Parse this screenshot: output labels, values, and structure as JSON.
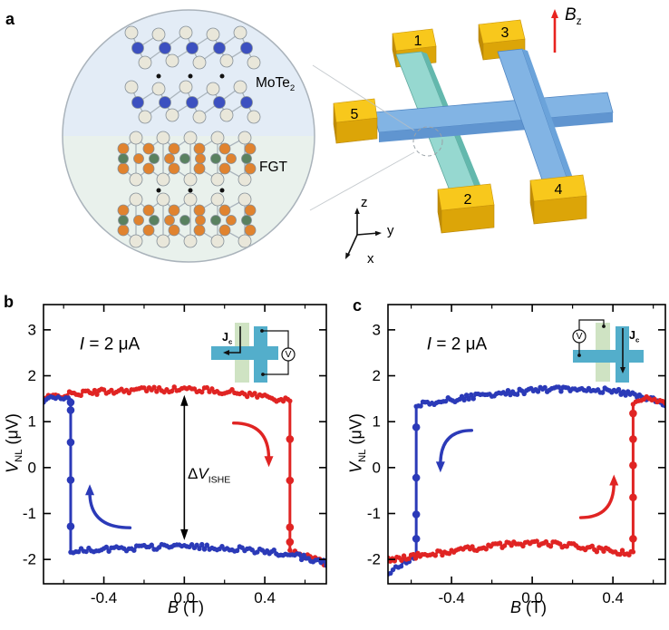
{
  "figure": {
    "panel_labels": {
      "a": "a",
      "b": "b",
      "c": "c"
    },
    "colors": {
      "red": "#e02423",
      "blue": "#2b3ab8",
      "device_blue_top": "#82b4e4",
      "device_blue_front": "#6095d0",
      "device_blue_side": "#6ba3da",
      "device_blue_outline": "#4f85c2",
      "device_teal_top": "#96d8d0",
      "device_teal_side": "#63b8ad",
      "pad_top": "#f8c81c",
      "pad_front": "#dca508",
      "pad_side": "#c08c06",
      "inset_green": "#cfe3c3",
      "inset_blue": "#53aecb",
      "field_arrow": "#e8231f"
    }
  },
  "panel_a": {
    "label": "a",
    "zoom_inset": {
      "top_material": {
        "base": "MoTe",
        "sub": "2"
      },
      "bottom_material": "FGT",
      "bg_top": "#e3ecf6",
      "bg_bottom": "#e9f1ec",
      "atom_colors": {
        "te": "#e9e7da",
        "mo": "#3c50c0",
        "fe": "#e0832f",
        "ge": "#59815f"
      }
    },
    "device": {
      "contacts": [
        "1",
        "2",
        "3",
        "4",
        "5"
      ],
      "field_label": {
        "base": "B",
        "sub": "z"
      },
      "axis_labels": {
        "z": "z",
        "y": "y",
        "x": "x"
      }
    }
  },
  "chart_data": [
    {
      "id": "b",
      "type": "line",
      "xlabel": {
        "base": "B",
        "unit": " (T)"
      },
      "ylabel": {
        "base": "V",
        "sub": "NL",
        "unit": " (μV)"
      },
      "xlim": [
        -0.7,
        0.706
      ],
      "ylim": [
        -2.53,
        3.55
      ],
      "xticks": [
        {
          "v": -0.4,
          "t": "-0.4"
        },
        {
          "v": 0.0,
          "t": "0.0"
        },
        {
          "v": 0.4,
          "t": "0.4"
        }
      ],
      "xminor": [
        -0.6,
        -0.2,
        0.2,
        0.6
      ],
      "yticks": [
        {
          "v": -2,
          "t": "-2"
        },
        {
          "v": -1,
          "t": "-1"
        },
        {
          "v": 0,
          "t": "0"
        },
        {
          "v": 1,
          "t": "1"
        },
        {
          "v": 2,
          "t": "2"
        },
        {
          "v": 3,
          "t": "3"
        }
      ],
      "annotations": {
        "current": {
          "base": "I",
          "rest": " = 2 μA",
          "x": -0.37,
          "y": 2.68
        },
        "delta": {
          "sym": "Δ",
          "var": "V",
          "sub": "ISHE",
          "x": 0.0,
          "y1": 1.58,
          "y2": -1.58
        },
        "arrows": [
          {
            "color": "red",
            "from": [
              0.245,
              0.97
            ],
            "ctrl": [
              0.42,
              0.97
            ],
            "to": [
              0.42,
              0.19
            ]
          },
          {
            "color": "blue",
            "from": [
              -0.27,
              -1.31
            ],
            "ctrl": [
              -0.47,
              -1.31
            ],
            "to": [
              -0.47,
              -0.54
            ]
          }
        ]
      },
      "series": [
        {
          "name": "sweep-up",
          "color": "red",
          "points": [
            [
              -0.7,
              1.5
            ],
            [
              -0.64,
              1.56
            ],
            [
              -0.56,
              1.6
            ],
            [
              -0.48,
              1.63
            ],
            [
              -0.4,
              1.66
            ],
            [
              -0.3,
              1.68
            ],
            [
              -0.2,
              1.7
            ],
            [
              -0.1,
              1.7
            ],
            [
              0.0,
              1.71
            ],
            [
              0.1,
              1.69
            ],
            [
              0.2,
              1.66
            ],
            [
              0.3,
              1.61
            ],
            [
              0.4,
              1.55
            ],
            [
              0.47,
              1.49
            ],
            [
              0.525,
              1.44
            ],
            [
              0.525,
              -1.8
            ],
            [
              0.55,
              -1.87
            ],
            [
              0.6,
              -1.92
            ],
            [
              0.65,
              -1.99
            ],
            [
              0.706,
              -2.1
            ]
          ],
          "jump_dots": [
            [
              0.525,
              0.62
            ],
            [
              0.525,
              -0.28
            ],
            [
              0.525,
              -1.3
            ],
            [
              0.525,
              -1.62
            ]
          ]
        },
        {
          "name": "sweep-down",
          "color": "blue",
          "points": [
            [
              0.706,
              -2.08
            ],
            [
              0.64,
              -2.0
            ],
            [
              0.56,
              -1.93
            ],
            [
              0.48,
              -1.87
            ],
            [
              0.4,
              -1.83
            ],
            [
              0.3,
              -1.78
            ],
            [
              0.2,
              -1.75
            ],
            [
              0.1,
              -1.72
            ],
            [
              0.0,
              -1.7
            ],
            [
              -0.1,
              -1.72
            ],
            [
              -0.2,
              -1.74
            ],
            [
              -0.3,
              -1.76
            ],
            [
              -0.4,
              -1.77
            ],
            [
              -0.5,
              -1.78
            ],
            [
              -0.565,
              -1.8
            ],
            [
              -0.565,
              1.46
            ],
            [
              -0.6,
              1.51
            ],
            [
              -0.64,
              1.52
            ],
            [
              -0.7,
              1.48
            ]
          ],
          "jump_dots": [
            [
              -0.565,
              1.42
            ],
            [
              -0.565,
              1.25
            ],
            [
              -0.565,
              0.55
            ],
            [
              -0.565,
              -0.27
            ],
            [
              -0.565,
              -1.28
            ]
          ]
        }
      ],
      "inset": {
        "variant": "b",
        "jc": {
          "base": "J",
          "sub": "c"
        },
        "meter": "V"
      }
    },
    {
      "id": "c",
      "type": "line",
      "xlabel": {
        "base": "B",
        "unit": " (T)"
      },
      "ylabel": {
        "base": "V",
        "sub": "NL",
        "unit": " (μV)"
      },
      "xlim": [
        -0.715,
        0.66
      ],
      "ylim": [
        -2.53,
        3.55
      ],
      "xticks": [
        {
          "v": -0.4,
          "t": "-0.4"
        },
        {
          "v": 0.0,
          "t": "0.0"
        },
        {
          "v": 0.4,
          "t": "0.4"
        }
      ],
      "xminor": [
        -0.6,
        -0.2,
        0.2,
        0.6
      ],
      "yticks": [
        {
          "v": -2,
          "t": "-2"
        },
        {
          "v": -1,
          "t": "-1"
        },
        {
          "v": 0,
          "t": "0"
        },
        {
          "v": 1,
          "t": "1"
        },
        {
          "v": 2,
          "t": "2"
        },
        {
          "v": 3,
          "t": "3"
        }
      ],
      "annotations": {
        "current": {
          "base": "I",
          "rest": " = 2 μA",
          "x": -0.37,
          "y": 2.68
        },
        "arrows": [
          {
            "color": "blue",
            "from": [
              -0.3,
              0.81
            ],
            "ctrl": [
              -0.455,
              0.81
            ],
            "to": [
              -0.455,
              0.07
            ]
          },
          {
            "color": "red",
            "from": [
              0.24,
              -1.09
            ],
            "ctrl": [
              0.405,
              -1.09
            ],
            "to": [
              0.405,
              -0.33
            ]
          }
        ]
      },
      "series": [
        {
          "name": "sweep-down",
          "color": "blue",
          "points": [
            [
              0.66,
              1.4
            ],
            [
              0.6,
              1.49
            ],
            [
              0.52,
              1.57
            ],
            [
              0.44,
              1.64
            ],
            [
              0.36,
              1.68
            ],
            [
              0.28,
              1.71
            ],
            [
              0.2,
              1.72
            ],
            [
              0.12,
              1.71
            ],
            [
              0.04,
              1.69
            ],
            [
              -0.04,
              1.66
            ],
            [
              -0.12,
              1.63
            ],
            [
              -0.2,
              1.59
            ],
            [
              -0.28,
              1.55
            ],
            [
              -0.36,
              1.5
            ],
            [
              -0.44,
              1.46
            ],
            [
              -0.52,
              1.4
            ],
            [
              -0.575,
              1.36
            ],
            [
              -0.575,
              -1.92
            ],
            [
              -0.61,
              -2.01
            ],
            [
              -0.65,
              -2.12
            ],
            [
              -0.69,
              -2.24
            ],
            [
              -0.715,
              -2.33
            ]
          ],
          "jump_dots": [
            [
              -0.575,
              0.88
            ],
            [
              -0.575,
              -0.22
            ],
            [
              -0.575,
              -1.02
            ],
            [
              -0.575,
              -1.55
            ]
          ]
        },
        {
          "name": "sweep-up",
          "color": "red",
          "points": [
            [
              -0.715,
              -2.02
            ],
            [
              -0.66,
              -1.97
            ],
            [
              -0.6,
              -1.94
            ],
            [
              -0.545,
              -1.91
            ],
            [
              -0.48,
              -1.87
            ],
            [
              -0.4,
              -1.83
            ],
            [
              -0.32,
              -1.78
            ],
            [
              -0.24,
              -1.73
            ],
            [
              -0.16,
              -1.69
            ],
            [
              -0.08,
              -1.66
            ],
            [
              0.0,
              -1.64
            ],
            [
              0.08,
              -1.66
            ],
            [
              0.16,
              -1.69
            ],
            [
              0.24,
              -1.73
            ],
            [
              0.32,
              -1.78
            ],
            [
              0.4,
              -1.83
            ],
            [
              0.47,
              -1.87
            ],
            [
              0.5,
              -1.89
            ],
            [
              0.5,
              1.38
            ],
            [
              0.54,
              1.47
            ],
            [
              0.58,
              1.52
            ],
            [
              0.62,
              1.48
            ],
            [
              0.66,
              1.44
            ]
          ],
          "jump_dots": [
            [
              0.5,
              1.18
            ],
            [
              0.5,
              0.62
            ],
            [
              0.5,
              0.05
            ],
            [
              0.5,
              -0.65
            ],
            [
              0.5,
              -1.55
            ]
          ]
        }
      ],
      "inset": {
        "variant": "c",
        "jc": {
          "base": "J",
          "sub": "c"
        },
        "meter": "V"
      }
    }
  ]
}
